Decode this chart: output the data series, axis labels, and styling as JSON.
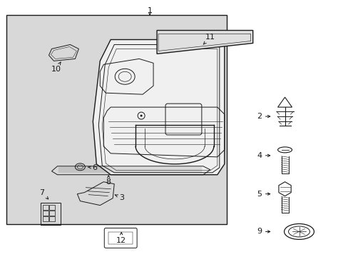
{
  "bg_color": "#ffffff",
  "box_bg": "#e0e0e0",
  "line_color": "#1a1a1a",
  "fig_width": 4.89,
  "fig_height": 3.6,
  "dpi": 100
}
